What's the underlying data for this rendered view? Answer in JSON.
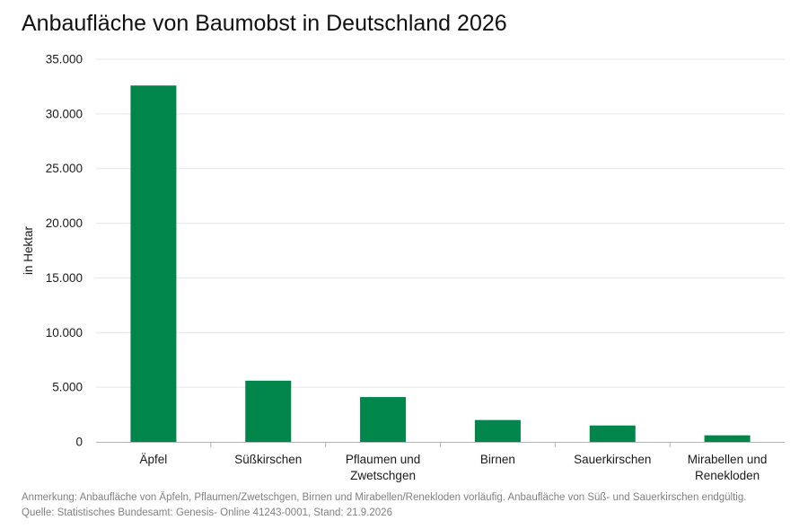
{
  "title": "Anbaufläche von Baumobst in Deutschland 2026",
  "note": "Anmerkung: Anbaufläche von Äpfeln, Pflaumen/Zwetschgen, Birnen und Mirabellen/Renekloden vorläufig. Anbaufläche von Süß- und Sauerkirschen endgültig.",
  "source": "Quelle: Statistisches Bundesamt: Genesis- Online 41243-0001, Stand: 21.9.2026",
  "colors": {
    "bar": "#00854a",
    "grid": "#e6e6e6",
    "axis": "#b3b3b3"
  },
  "chart_data": {
    "type": "bar",
    "title": "Anbaufläche von Baumobst in Deutschland 2026",
    "ylabel": "in Hektar",
    "xlabel": "",
    "ylim": [
      0,
      35000
    ],
    "yticks": [
      0,
      5000,
      10000,
      15000,
      20000,
      25000,
      30000,
      35000
    ],
    "ytick_labels": [
      "0",
      "5.000",
      "10.000",
      "15.000",
      "20.000",
      "25.000",
      "30.000",
      "35.000"
    ],
    "grid": true,
    "categories": [
      [
        "Äpfel"
      ],
      [
        "Süßkirschen"
      ],
      [
        "Pflaumen und",
        "Zwetschgen"
      ],
      [
        "Birnen"
      ],
      [
        "Sauerkirschen"
      ],
      [
        "Mirabellen und",
        "Renekloden"
      ]
    ],
    "values": [
      32600,
      5600,
      4100,
      2000,
      1500,
      600
    ]
  }
}
